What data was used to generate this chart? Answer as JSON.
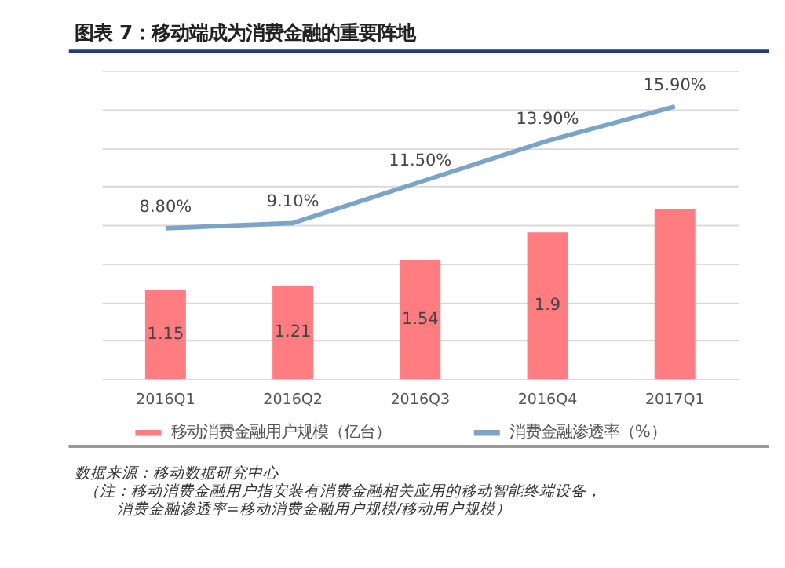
{
  "chart_data": {
    "type": "bar",
    "title": "图表 7：移动端成为消费金融的重要阵地",
    "categories": [
      "2016Q1",
      "2016Q2",
      "2016Q3",
      "2016Q4",
      "2017Q1"
    ],
    "series": [
      {
        "name": "移动消费金融用户规模（亿台）",
        "color": "#ff7c80",
        "values": [
          1.15,
          1.21,
          1.54,
          1.9,
          2.2
        ],
        "value_labels": [
          "1.15",
          "1.21",
          "1.54",
          "1.9",
          null
        ]
      },
      {
        "name": "消费金融渗透率（%）",
        "type": "line",
        "axis": "y2",
        "color": "#7ba4c6",
        "values": [
          8.8,
          9.1,
          11.5,
          13.9,
          15.9
        ],
        "value_labels": [
          "8.80%",
          "9.10%",
          "11.50%",
          "13.90%",
          "15.90%"
        ]
      }
    ],
    "ylim": [
      0,
      4
    ],
    "yticks": [
      {
        "value": 0,
        "label": null
      },
      {
        "value": 0.5,
        "label": null
      },
      {
        "value": 1,
        "label": null
      },
      {
        "value": 1.5,
        "label": null
      },
      {
        "value": 2,
        "label": null
      },
      {
        "value": 2.5,
        "label": null
      },
      {
        "value": 3,
        "label": null
      },
      {
        "value": 3.5,
        "label": null
      },
      {
        "value": 4,
        "label": null
      }
    ],
    "y2lim": [
      0,
      18
    ],
    "tick_labels": "x",
    "grid": "y",
    "legend": "bottom",
    "marker": "none",
    "line_style": "solid",
    "annotations": [
      "数据来源：移动数据研究中心",
      "（注：移动消费金融用户指安装有消费金融相关应用的移动智能终端设备，",
      "消费金融渗透率=移动消费金融用户规模/移动用户规模）"
    ]
  }
}
